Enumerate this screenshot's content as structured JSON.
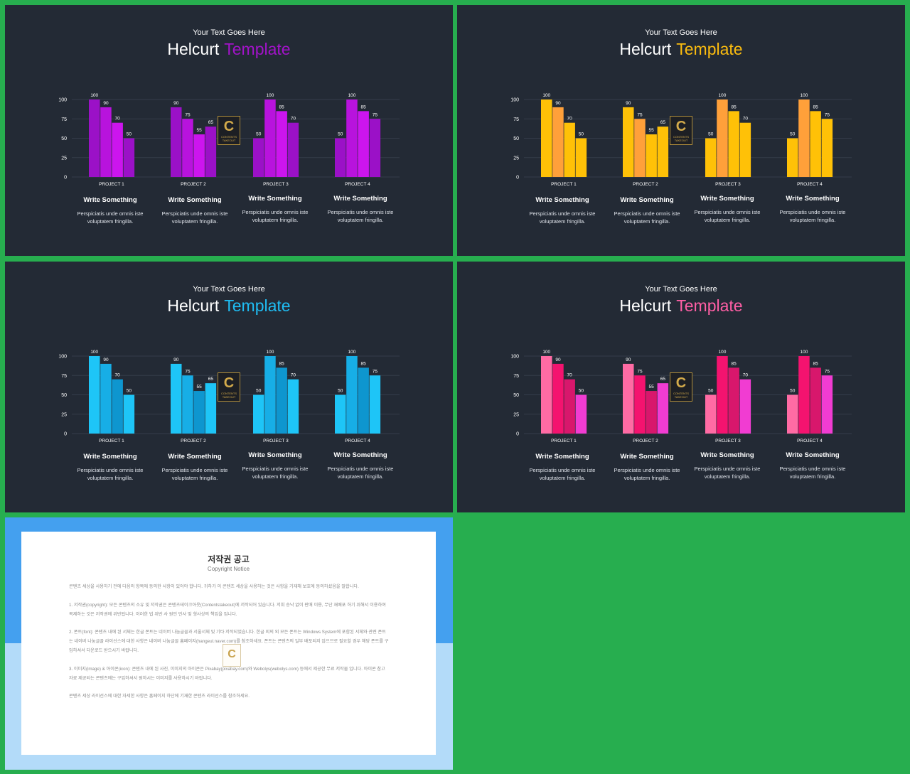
{
  "slides": [
    {
      "subtitle": "Your Text Goes Here",
      "title_main": "Helcurt",
      "title_accent": "Template",
      "accent": "#a213c9",
      "colors": [
        "#9b11c7",
        "#b813dd",
        "#cc15ee"
      ]
    },
    {
      "subtitle": "Your Text Goes Here",
      "title_main": "Helcurt",
      "title_accent": "Template",
      "accent": "#fbbc0f",
      "colors": [
        "#ffc107",
        "#ffa03a",
        "#ffc107"
      ]
    },
    {
      "subtitle": "Your Text Goes Here",
      "title_main": "Helcurt",
      "title_accent": "Template",
      "accent": "#1fbdf3",
      "colors": [
        "#1ec5f7",
        "#17aee6",
        "#0e96cf"
      ]
    },
    {
      "subtitle": "Your Text Goes Here",
      "title_main": "Helcurt",
      "title_accent": "Template",
      "accent": "#ff5fa5",
      "colors": [
        "#ff6ba4",
        "#f4136f",
        "#d8176c",
        "#f13cd2"
      ]
    }
  ],
  "captions": [
    {
      "title": "Write Something",
      "text": "Perspiciatis unde omnis iste voluptatem fringilla."
    },
    {
      "title": "Write Something",
      "text": "Perspiciatis unde omnis iste voluptatem fringilla."
    },
    {
      "title": "Write Something",
      "text": "Perspiciatis unde omnis iste voluptatem fringilla."
    },
    {
      "title": "Write Something",
      "text": "Perspiciatis unde omnis iste voluptatem fringilla."
    }
  ],
  "logo": {
    "letter": "C",
    "text": "CONTENTS TAKEOUT"
  },
  "chart_data": {
    "type": "bar",
    "groups": [
      {
        "name": "PROJECT 1",
        "values": [
          100,
          90,
          70,
          50
        ]
      },
      {
        "name": "PROJECT 2",
        "values": [
          90,
          75,
          55,
          65
        ]
      },
      {
        "name": "PROJECT 3",
        "values": [
          50,
          100,
          85,
          70
        ]
      },
      {
        "name": "PROJECT 4",
        "values": [
          50,
          100,
          85,
          75
        ]
      }
    ],
    "y_ticks": [
      0,
      25,
      50,
      75,
      100
    ],
    "ylim": [
      0,
      100
    ],
    "grid": true
  },
  "notice": {
    "title": "저작권 공고",
    "subtitle": "Copyright Notice",
    "paragraphs": [
      "콘텐츠 세상을 사용하기 전에 다음의 항목에 동의한 사항이 있어야 합니다. 귀하가 이 콘텐츠 세상을 사용하는 것은 사항을 기재해 보호에 동의하셨음을 말합니다.",
      "1. 저작권(copyright): 모든 콘텐츠의 소유 및 저작권은 콘텐츠테이크아웃(Contentstakeout)에 저작되어 있습니다. 저희 승낙 없이 판매 이용, 무단 재배포 하기 위해서 이용하여 복제하는 것은 저작권에 위반됩니다. 이러한 법 위반 사 원인 민사 및 형사상의 책임을 집니다.",
      "2. 폰트(font): 콘텐츠 내에 된 서체는 한글 폰트는 네이버 나눔글꼴과 서울서체 및 기타 저작되었습니다. 한글 외의 외 모든 폰트는 Windows System에 포함된 서체와 관련 폰트는 네이버 나눔글꼴 라이선스에 대한 사항은 네이버 나눔글꼴 홈페이지(hangeul.naver.com)를 참조하세요. 폰트는 콘텐츠의 일부 배포되지 않으므로 필요할 경우 해당 폰트를 구입하셔서 다운로드 받으시기 바랍니다.",
      "3. 이미지(image) & 아이콘(icon): 콘텐츠 내에 된 사진, 이미지의 아이콘은 Pixabay(pixabay.com)와 Webolys(webolys.com) 등에서 제공한 무료 저작물 입니다. 아이콘 참고자료 제공되는 콘텐츠에는 구입하셔서 원하시는 이미지를 사용하시기 바랍니다.",
      "콘텐츠 세상 라이선스에 대한 자세한 사항은 홈페이지 하단에 기재한 콘텐츠 라이선스를 참조하세요."
    ]
  }
}
